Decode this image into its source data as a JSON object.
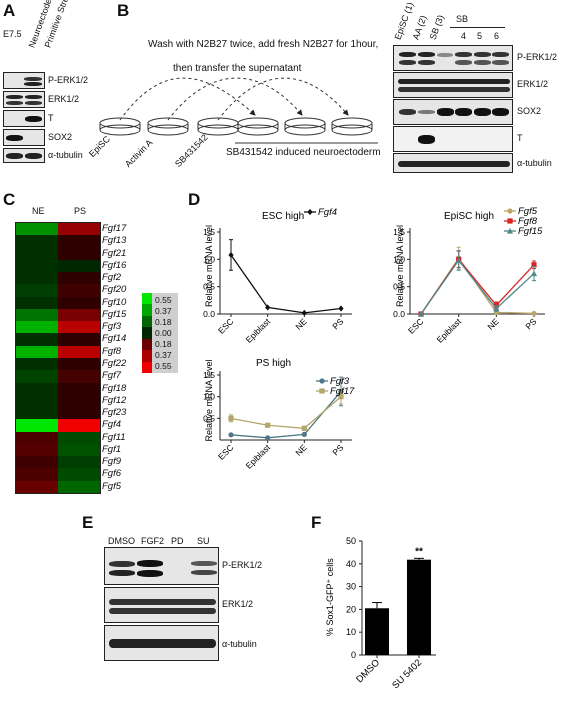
{
  "panels": {
    "a": "A",
    "b": "B",
    "c": "C",
    "d": "D",
    "e": "E",
    "f": "F"
  },
  "panel_a": {
    "stage": "E7.5",
    "lanes": [
      "Neuroectoderm",
      "Primitive Streak"
    ],
    "blots": [
      "P-ERK1/2",
      "ERK1/2",
      "T",
      "SOX2",
      "α-tubulin"
    ]
  },
  "panel_b": {
    "instruction_line1": "Wash with N2B27 twice, add fresh N2B27 for 1hour,",
    "instruction_line2": "then transfer the supernatant",
    "dish_labels": [
      "EpiSC",
      "Activin A",
      "SB431542"
    ],
    "target_label": "SB431542 induced neuroectoderm",
    "lanes": [
      "EpiSC (1)",
      "AA (2)",
      "SB (3)"
    ],
    "sb_group": "SB",
    "sb_lanes": [
      "4",
      "5",
      "6"
    ],
    "blots": [
      "P-ERK1/2",
      "ERK1/2",
      "SOX2",
      "T",
      "α-tubulin"
    ]
  },
  "panel_c": {
    "columns": [
      "NE",
      "PS"
    ],
    "genes": [
      "Fgf17",
      "Fgf13",
      "Fgf21",
      "Fgf16",
      "Fgf2",
      "Fgf20",
      "Fgf10",
      "Fgf15",
      "Fgf3",
      "Fgf14",
      "Fgf8",
      "Fgf22",
      "Fgf7",
      "Fgf18",
      "Fgf12",
      "Fgf23",
      "Fgf4",
      "Fgf11",
      "Fgf1",
      "Fgf9",
      "Fgf6",
      "Fgf5"
    ],
    "values": [
      [
        0.3,
        -0.3
      ],
      [
        0.02,
        -0.02
      ],
      [
        0.02,
        -0.02
      ],
      [
        0.02,
        0.0
      ],
      [
        0.02,
        -0.02
      ],
      [
        0.06,
        -0.06
      ],
      [
        0.02,
        -0.02
      ],
      [
        0.22,
        -0.22
      ],
      [
        0.4,
        -0.4
      ],
      [
        0.02,
        -0.02
      ],
      [
        0.4,
        -0.4
      ],
      [
        0.02,
        -0.02
      ],
      [
        0.08,
        -0.08
      ],
      [
        0.02,
        -0.02
      ],
      [
        0.02,
        -0.02
      ],
      [
        0.02,
        -0.02
      ],
      [
        0.55,
        -0.55
      ],
      [
        -0.1,
        0.1
      ],
      [
        -0.12,
        0.12
      ],
      [
        -0.06,
        0.06
      ],
      [
        -0.1,
        0.1
      ],
      [
        -0.18,
        0.18
      ]
    ],
    "scale_labels": [
      "0.55",
      "0.37",
      "0.18",
      "0.00",
      "0.18",
      "0.37",
      "0.55"
    ],
    "colors": {
      "high": "#22dd22",
      "low": "#ee2222",
      "mid": "#000000"
    }
  },
  "chart_data": [
    {
      "type": "line",
      "title": "ESC high",
      "ylabel": "Relative mRNA level",
      "categories": [
        "ESC",
        "Epiblast",
        "NE",
        "PS"
      ],
      "ylim": [
        0,
        1.5
      ],
      "yticks": [
        "0.0",
        "0.5",
        "1.0",
        "1.5"
      ],
      "series": [
        {
          "name": "Fgf4",
          "color": "#111111",
          "marker": "diamond",
          "values": [
            1.08,
            0.12,
            0.02,
            0.1
          ],
          "errors": [
            0.28,
            0,
            0,
            0
          ]
        }
      ]
    },
    {
      "type": "line",
      "title": "EpiSC high",
      "ylabel": "Relative mRNA level",
      "categories": [
        "ESC",
        "Epiblast",
        "NE",
        "PS"
      ],
      "ylim": [
        0,
        1.5
      ],
      "yticks": [
        "0.0",
        "0.5",
        "1.0",
        "1.5"
      ],
      "series": [
        {
          "name": "Fgf5",
          "color": "#b8a56a",
          "marker": "circle",
          "values": [
            0.0,
            1.02,
            0.03,
            0.01
          ],
          "errors": [
            0,
            0.2,
            0,
            0
          ]
        },
        {
          "name": "Fgf8",
          "color": "#dd2222",
          "marker": "square",
          "values": [
            0.0,
            1.0,
            0.16,
            0.9
          ],
          "errors": [
            0,
            0.15,
            0.06,
            0.07
          ]
        },
        {
          "name": "Fgf15",
          "color": "#4f8a8b",
          "marker": "triangle",
          "values": [
            0.0,
            0.98,
            0.1,
            0.74
          ],
          "errors": [
            0,
            0.18,
            0.05,
            0.13
          ]
        }
      ]
    },
    {
      "type": "line",
      "title": "PS high",
      "ylabel": "Relative mRNA level",
      "categories": [
        "ESC",
        "Epiblast",
        "NE",
        "PS"
      ],
      "ylim": [
        0,
        1.5
      ],
      "yticks": [
        "0.5",
        "1.0",
        "1.5"
      ],
      "series": [
        {
          "name": "Fgf3",
          "color": "#4f7785",
          "marker": "circle",
          "values": [
            0.12,
            0.05,
            0.13,
            1.12
          ],
          "errors": [
            0,
            0,
            0,
            0.33
          ]
        },
        {
          "name": "Fgf17",
          "color": "#b3a66b",
          "marker": "square",
          "values": [
            0.5,
            0.34,
            0.27,
            1.0
          ],
          "errors": [
            0.08,
            0.04,
            0,
            0.17
          ]
        }
      ]
    },
    {
      "type": "bar",
      "ylabel": "% Sox1-GFP⁺ cells",
      "categories": [
        "DMSO",
        "SU 5402"
      ],
      "values": [
        20.5,
        41.8
      ],
      "errors": [
        2.5,
        0.6
      ],
      "ylim": [
        0,
        50
      ],
      "yticks": [
        "0",
        "10",
        "20",
        "30",
        "40",
        "50"
      ],
      "annotation": "**"
    }
  ],
  "panel_e": {
    "lanes": [
      "DMSO",
      "FGF2",
      "PD",
      "SU"
    ],
    "blots": [
      "P-ERK1/2",
      "ERK1/2",
      "α-tubulin"
    ]
  }
}
